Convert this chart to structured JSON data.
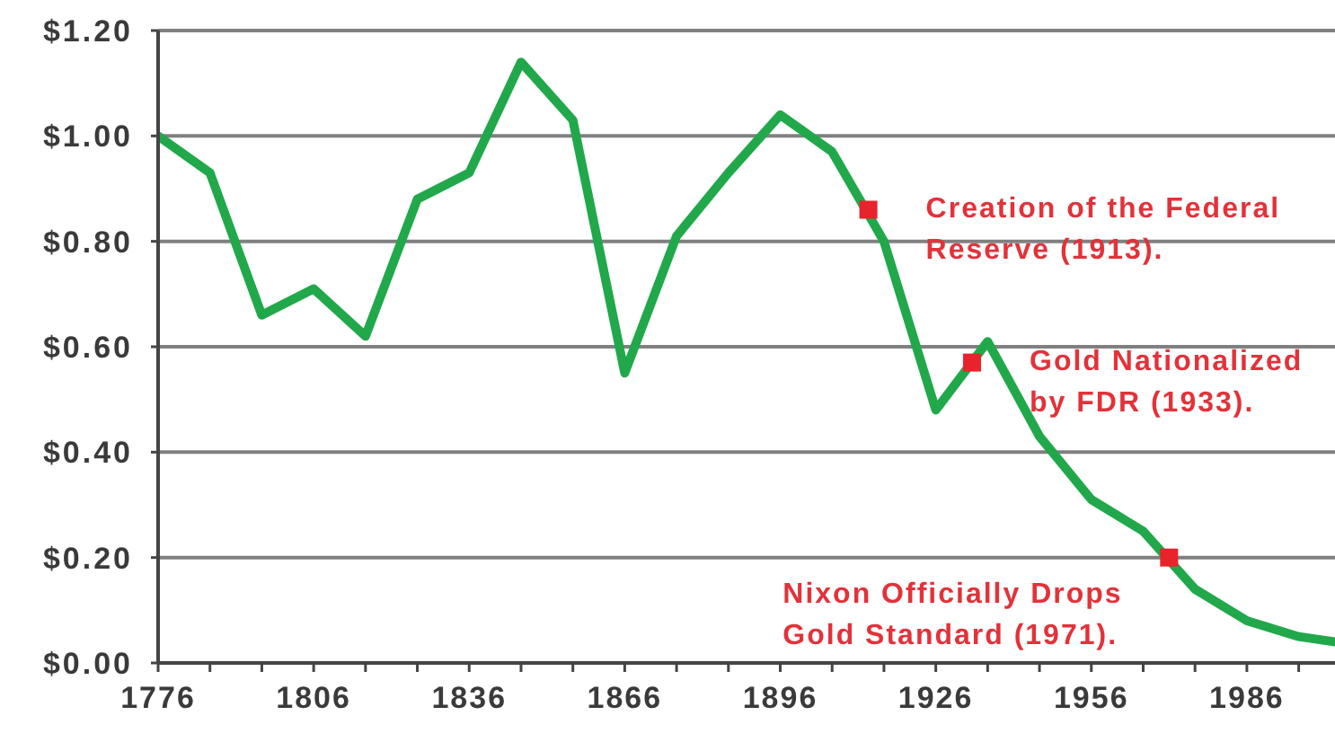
{
  "chart_data": {
    "type": "line",
    "x": [
      1776,
      1786,
      1796,
      1806,
      1816,
      1826,
      1836,
      1846,
      1856,
      1866,
      1876,
      1886,
      1896,
      1906,
      1916,
      1926,
      1936,
      1946,
      1956,
      1966,
      1976,
      1986,
      1996,
      2003
    ],
    "series": [
      {
        "color": "#21a84a",
        "values": [
          1.0,
          0.93,
          0.66,
          0.71,
          0.62,
          0.88,
          0.93,
          1.14,
          1.03,
          0.55,
          0.81,
          0.93,
          1.04,
          0.97,
          0.8,
          0.48,
          0.61,
          0.43,
          0.31,
          0.25,
          0.14,
          0.08,
          0.05,
          0.04
        ]
      }
    ],
    "xlim": [
      1776,
      2003
    ],
    "xticks": [
      1776,
      {
        "value": 1786,
        "label": null
      },
      {
        "value": 1796,
        "label": null
      },
      1806,
      {
        "value": 1816,
        "label": null
      },
      {
        "value": 1826,
        "label": null
      },
      1836,
      {
        "value": 1846,
        "label": null
      },
      {
        "value": 1856,
        "label": null
      },
      1866,
      {
        "value": 1876,
        "label": null
      },
      {
        "value": 1886,
        "label": null
      },
      1896,
      {
        "value": 1906,
        "label": null
      },
      {
        "value": 1916,
        "label": null
      },
      1926,
      {
        "value": 1936,
        "label": null
      },
      {
        "value": 1946,
        "label": null
      },
      1956,
      {
        "value": 1966,
        "label": null
      },
      {
        "value": 1976,
        "label": null
      },
      1986,
      {
        "value": 1996,
        "label": null
      }
    ],
    "ylim": [
      0,
      1.2
    ],
    "yticks": [
      {
        "value": 0,
        "label": "$0.00"
      },
      {
        "value": 0.2,
        "label": "$0.20"
      },
      {
        "value": 0.4,
        "label": "$0.40"
      },
      {
        "value": 0.6,
        "label": "$0.60"
      },
      {
        "value": 0.8,
        "label": "$0.80"
      },
      {
        "value": 1.0,
        "label": "$1.00"
      },
      {
        "value": 1.2,
        "label": "$1.20"
      }
    ],
    "grid": "y",
    "line_style": "solid",
    "annotations": [
      {
        "text": "Creation of the Federal Reserve (1913).",
        "x": 1913,
        "y": 0.86
      },
      {
        "text": "Gold Nationalized by FDR (1933).",
        "x": 1933,
        "y": 0.57
      },
      {
        "text": "Nixon Officially Drops Gold Standard (1971).",
        "x": 1971,
        "y": 0.2
      }
    ]
  }
}
